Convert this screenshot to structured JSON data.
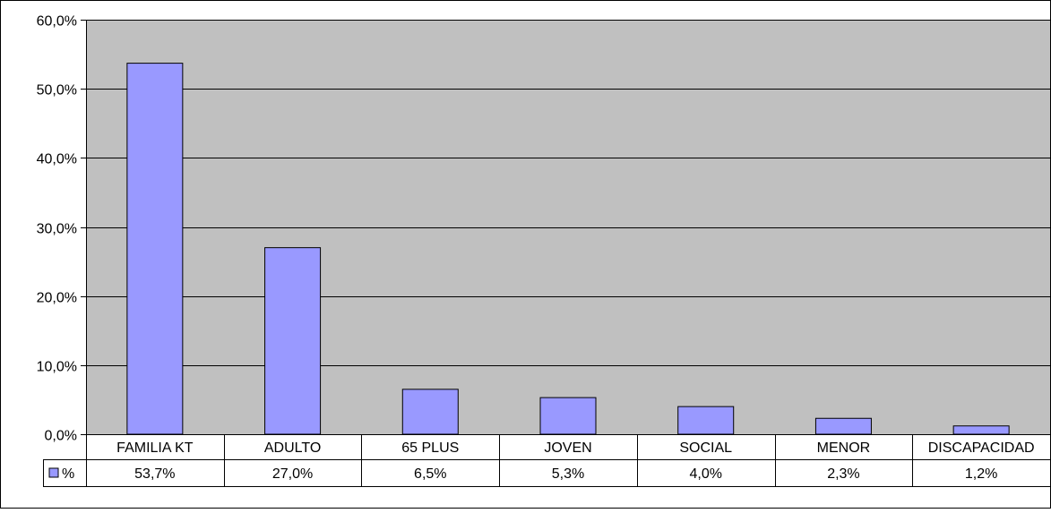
{
  "chart_data": {
    "type": "bar",
    "categories": [
      "FAMILIA KT",
      "ADULTO",
      "65 PLUS",
      "JOVEN",
      "SOCIAL",
      "MENOR",
      "DISCAPACIDAD"
    ],
    "series": [
      {
        "name": "%",
        "values": [
          53.7,
          27.0,
          6.5,
          5.3,
          4.0,
          2.3,
          1.2
        ],
        "value_labels": [
          "53,7%",
          "27,0%",
          "6,5%",
          "5,3%",
          "4,0%",
          "2,3%",
          "1,2%"
        ],
        "color": "#9999ff"
      }
    ],
    "ylim": [
      0,
      60
    ],
    "yticks": [
      0,
      10,
      20,
      30,
      40,
      50,
      60
    ],
    "ytick_labels": [
      "0,0%",
      "10,0%",
      "20,0%",
      "30,0%",
      "40,0%",
      "50,0%",
      "60,0%"
    ],
    "grid": true,
    "legend": "data-table-left",
    "plot_background": "#c0c0c0",
    "title": "",
    "xlabel": "",
    "ylabel": ""
  }
}
